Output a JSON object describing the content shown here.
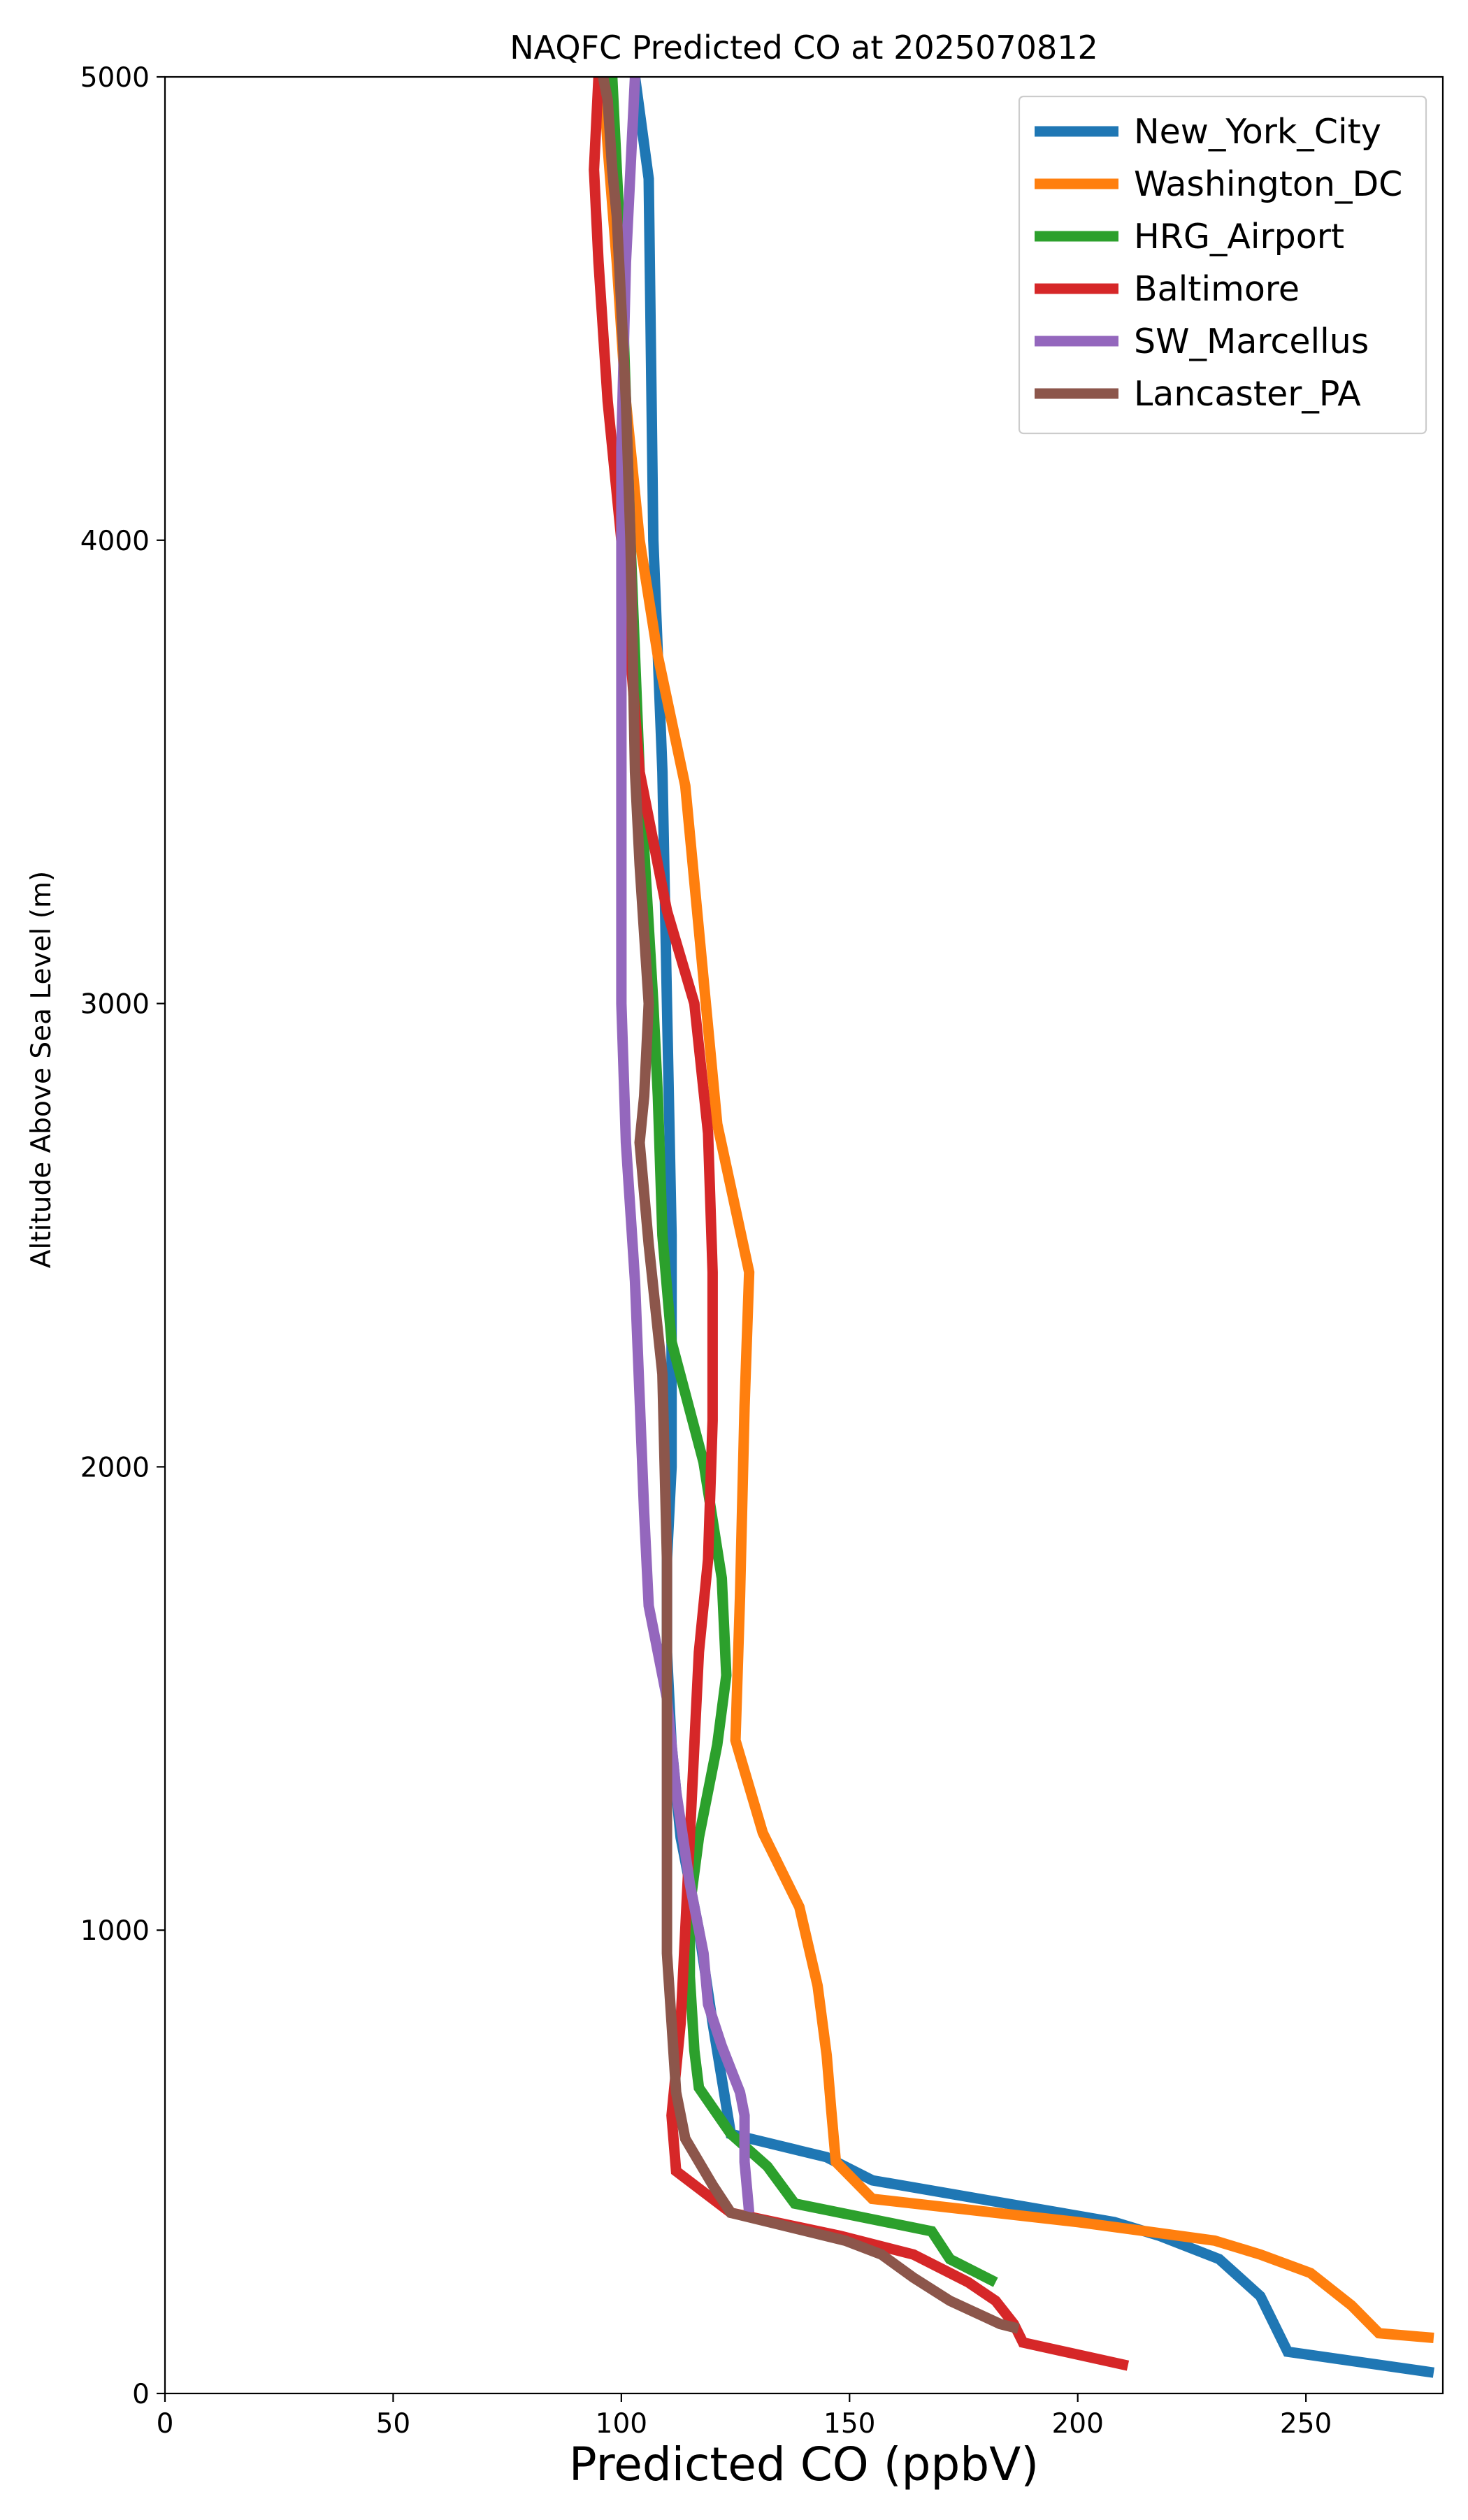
{
  "chart_data": {
    "type": "line",
    "title": "NAQFC Predicted CO at 2025070812",
    "xlabel": "Predicted CO (ppbV)",
    "ylabel": "Altitude Above Sea Level (m)",
    "xlim": [
      0,
      280
    ],
    "ylim": [
      0,
      5000
    ],
    "xticks": [
      "0",
      "50",
      "100",
      "150",
      "200",
      "250"
    ],
    "yticks": [
      "0",
      "1000",
      "2000",
      "3000",
      "4000",
      "5000"
    ],
    "grid": false,
    "legend_position": "top-right",
    "series": [
      {
        "name": "New_York_City",
        "color": "#1f77b4",
        "x": [
          278,
          246,
          240,
          231,
          218,
          208,
          155,
          145,
          124,
          120,
          117,
          113,
          111,
          110,
          110,
          111,
          111,
          110,
          109,
          107,
          106,
          103
        ],
        "y": [
          45,
          90,
          210,
          290,
          340,
          370,
          460,
          510,
          560,
          800,
          1000,
          1200,
          1400,
          1600,
          1800,
          2000,
          2500,
          3000,
          3500,
          4000,
          4780,
          5000
        ]
      },
      {
        "name": "Washington_DC",
        "color": "#ff7f0e",
        "x": [
          278,
          266,
          260,
          251,
          240,
          230,
          200,
          155,
          147,
          146,
          145,
          143,
          139,
          131,
          125,
          126,
          127,
          128,
          121,
          114,
          108,
          104,
          101,
          99,
          97,
          96
        ],
        "y": [
          120,
          130,
          190,
          260,
          300,
          330,
          370,
          420,
          500,
          610,
          730,
          880,
          1050,
          1210,
          1410,
          1720,
          2130,
          2420,
          2740,
          3470,
          3750,
          4000,
          4300,
          4600,
          4850,
          5000
        ]
      },
      {
        "name": "HRG_Airport",
        "color": "#2ca02c",
        "x": [
          182,
          172,
          168,
          138,
          132,
          124,
          117,
          116,
          115,
          115,
          117,
          121,
          123,
          122,
          118,
          111,
          109,
          108,
          107,
          104,
          102,
          101,
          100,
          99,
          98
        ],
        "y": [
          240,
          290,
          350,
          410,
          490,
          560,
          660,
          740,
          900,
          1050,
          1200,
          1400,
          1550,
          1760,
          2010,
          2270,
          2500,
          2800,
          3000,
          3500,
          4000,
          4300,
          4600,
          4800,
          5000
        ]
      },
      {
        "name": "Baltimore",
        "color": "#d62728",
        "x": [
          211,
          188,
          186,
          182,
          176,
          164,
          148,
          124,
          112,
          111,
          113,
          114,
          115,
          116,
          117,
          119,
          120,
          120,
          119,
          116,
          110,
          104,
          100,
          97,
          95,
          94,
          95
        ],
        "y": [
          60,
          110,
          150,
          200,
          240,
          300,
          340,
          390,
          480,
          600,
          800,
          1000,
          1200,
          1400,
          1600,
          1800,
          2100,
          2420,
          2720,
          3000,
          3200,
          3500,
          4000,
          4300,
          4600,
          4800,
          5000
        ]
      },
      {
        "name": "SW_Marcellus",
        "color": "#9467bd",
        "x": [
          128,
          127,
          127,
          126,
          124,
          122,
          119,
          118,
          115,
          112,
          110,
          106,
          105,
          104,
          103,
          101,
          100,
          100,
          100,
          100,
          101,
          102,
          103
        ],
        "y": [
          390,
          500,
          600,
          650,
          700,
          750,
          840,
          950,
          1100,
          1300,
          1500,
          1700,
          1900,
          2150,
          2400,
          2700,
          3000,
          3500,
          4000,
          4200,
          4600,
          4800,
          5000
        ]
      },
      {
        "name": "Lancaster_PA",
        "color": "#8c564b",
        "x": [
          187,
          183,
          172,
          164,
          157,
          149,
          124,
          120,
          114,
          112,
          111,
          110,
          110,
          110,
          110,
          109,
          106,
          104,
          105,
          106,
          104,
          103,
          102,
          101,
          100,
          99,
          98,
          97,
          96
        ],
        "y": [
          140,
          150,
          200,
          250,
          300,
          330,
          390,
          450,
          550,
          650,
          800,
          950,
          1100,
          1400,
          1800,
          2200,
          2480,
          2700,
          2800,
          3000,
          3300,
          3500,
          4000,
          4300,
          4500,
          4700,
          4800,
          4950,
          5000
        ]
      }
    ]
  }
}
